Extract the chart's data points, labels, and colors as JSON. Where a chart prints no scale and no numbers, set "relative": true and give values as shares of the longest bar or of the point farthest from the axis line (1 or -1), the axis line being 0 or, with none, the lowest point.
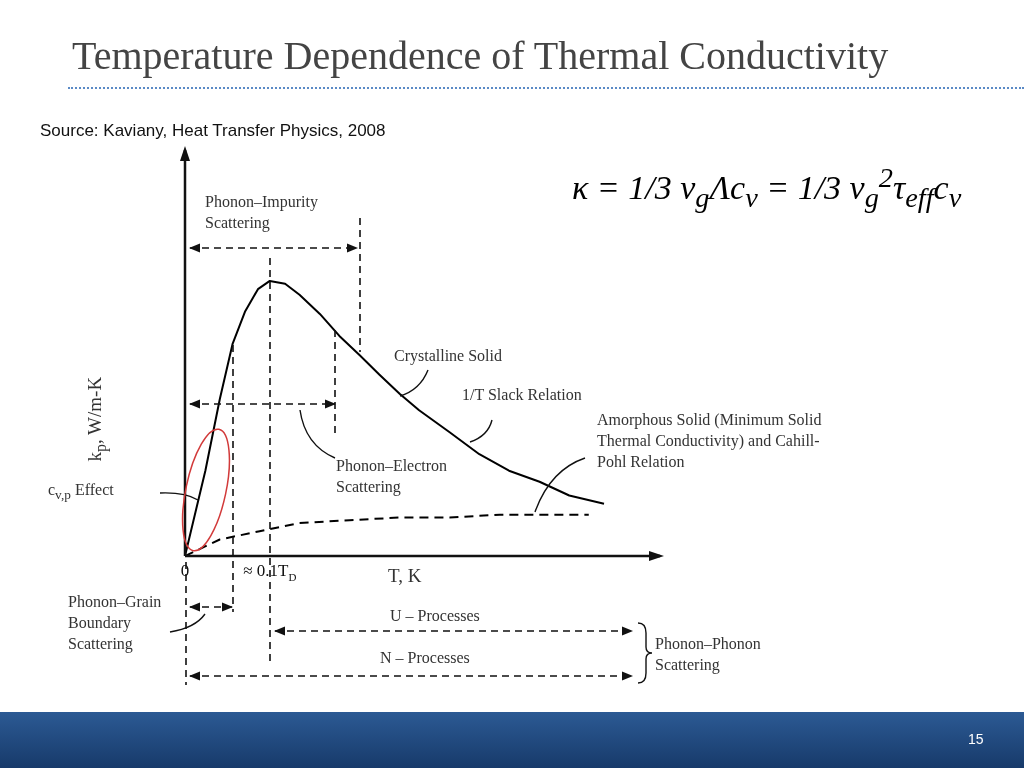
{
  "chart_data": {
    "type": "line",
    "title": "Temperature Dependence of Thermal Conductivity",
    "xlabel": "T, K",
    "ylabel": "k$_{p}$, W/m-K",
    "relative": true,
    "marker": "none",
    "legend": false,
    "xlim": [
      0,
      0.56
    ],
    "xticks": [
      {
        "value": 0,
        "label": "0"
      },
      {
        "value": 0.1,
        "label": "≈ 0.1T$_{D}$"
      }
    ],
    "series": [
      {
        "name": "Crystalline Solid",
        "color": "#000000",
        "line_style": "solid",
        "x": [
          0,
          0.024,
          0.041,
          0.056,
          0.071,
          0.086,
          0.1,
          0.118,
          0.135,
          0.159,
          0.182,
          0.206,
          0.229,
          0.253,
          0.276,
          0.312,
          0.347,
          0.382,
          0.418,
          0.453,
          0.494
        ],
        "values": [
          0,
          0.31,
          0.57,
          0.77,
          0.89,
          0.97,
          1,
          0.99,
          0.95,
          0.88,
          0.8,
          0.73,
          0.66,
          0.59,
          0.53,
          0.45,
          0.37,
          0.31,
          0.27,
          0.22,
          0.19
        ]
      },
      {
        "name": "Amorphous Solid (Minimum Solid Thermal Conductivity) and Cahill-Pohl Relation",
        "color": "#000000",
        "line_style": "dashed",
        "x": [
          0,
          0.041,
          0.088,
          0.135,
          0.194,
          0.253,
          0.312,
          0.371,
          0.476
        ],
        "values": [
          0,
          0.06,
          0.09,
          0.12,
          0.13,
          0.14,
          0.14,
          0.15,
          0.15
        ]
      }
    ],
    "annotations": [
      "Source: Kaviany, Heat Transfer Physics, 2008",
      "κ = 1/3 v$_{g}$Λc$_{v}$ = 1/3 v$_{g}$$^{2}$τ$_{eff}$c$_{v}$",
      "Phonon–Impurity Scattering",
      "1/T Slack Relation",
      "Phonon–Electron Scattering",
      "c$_{v,p}$ Effect",
      "Phonon–Grain Boundary Scattering",
      "U – Processes",
      "N – Processes",
      "Phonon–Phonon Scattering",
      "15"
    ]
  }
}
